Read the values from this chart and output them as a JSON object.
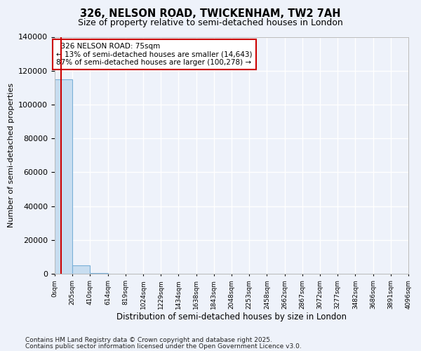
{
  "title": "326, NELSON ROAD, TWICKENHAM, TW2 7AH",
  "subtitle": "Size of property relative to semi-detached houses in London",
  "xlabel": "Distribution of semi-detached houses by size in London",
  "ylabel": "Number of semi-detached properties",
  "property_size": 75,
  "property_label": "326 NELSON ROAD: 75sqm",
  "pct_smaller": 13,
  "pct_larger": 87,
  "n_smaller": 14643,
  "n_larger": 100278,
  "bar_color": "#c8ddf0",
  "bar_edge_color": "#7ab0d8",
  "red_line_color": "#cc0000",
  "annotation_box_color": "#cc0000",
  "background_color": "#eef2fa",
  "grid_color": "#ffffff",
  "bins": [
    0,
    205,
    410,
    614,
    819,
    1024,
    1229,
    1434,
    1638,
    1843,
    2048,
    2253,
    2458,
    2662,
    2867,
    3072,
    3277,
    3482,
    3686,
    3891,
    4096
  ],
  "bin_labels": [
    "0sqm",
    "205sqm",
    "410sqm",
    "614sqm",
    "819sqm",
    "1024sqm",
    "1229sqm",
    "1434sqm",
    "1638sqm",
    "1843sqm",
    "2048sqm",
    "2253sqm",
    "2458sqm",
    "2662sqm",
    "2867sqm",
    "3072sqm",
    "3277sqm",
    "3482sqm",
    "3686sqm",
    "3891sqm",
    "4096sqm"
  ],
  "bar_heights": [
    114921,
    5000,
    400,
    50,
    20,
    8,
    4,
    3,
    2,
    1,
    1,
    0,
    0,
    0,
    0,
    0,
    0,
    0,
    0,
    0
  ],
  "ylim": [
    0,
    140000
  ],
  "yticks": [
    0,
    20000,
    40000,
    60000,
    80000,
    100000,
    120000,
    140000
  ],
  "footnote1": "Contains HM Land Registry data © Crown copyright and database right 2025.",
  "footnote2": "Contains public sector information licensed under the Open Government Licence v3.0."
}
